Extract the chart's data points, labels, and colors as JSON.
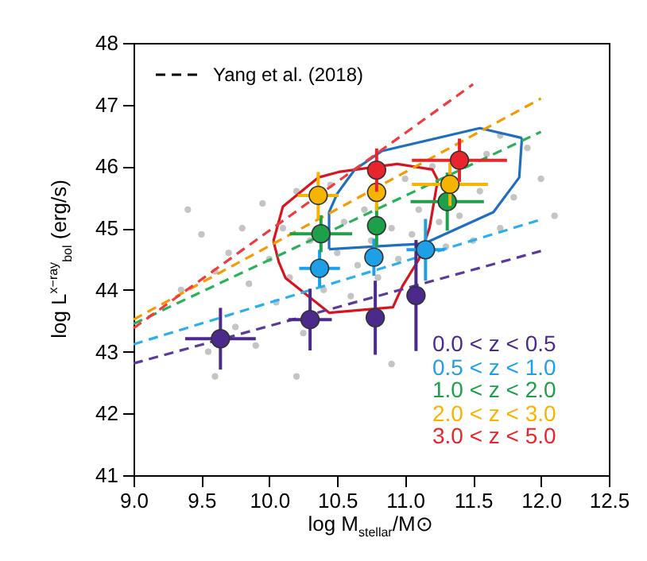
{
  "chart_data": {
    "type": "scatter",
    "xlabel": "log M$_{stellar}$/M⊙",
    "ylabel": "log L$^{x−ray}$$_{bol}$ (erg/s)",
    "xlim": [
      9.0,
      12.5
    ],
    "xticks": [
      {
        "value": 9,
        "label": "9.0"
      },
      9.5,
      {
        "value": 10,
        "label": "10.0"
      },
      10.5,
      {
        "value": 11,
        "label": "11.0"
      },
      11.5,
      {
        "value": 12,
        "label": "12.0"
      },
      12.5
    ],
    "ylim": [
      41,
      48
    ],
    "yticks": [
      41,
      42,
      43,
      44,
      45,
      46,
      47,
      48
    ],
    "grid": false,
    "legend": "bottom right",
    "annotations": [
      "Yang et al. (2018)"
    ],
    "series": [
      {
        "marker": "circle",
        "color": "#c4c4c4",
        "x": [
          9.35,
          9.4,
          9.5,
          9.55,
          9.6,
          9.7,
          9.75,
          9.8,
          9.85,
          9.9,
          9.95,
          10.0,
          10.05,
          10.1,
          10.15,
          10.2,
          10.25,
          10.3,
          10.4,
          10.45,
          10.5,
          10.55,
          10.6,
          10.65,
          10.7,
          10.75,
          10.8,
          10.9,
          10.95,
          11.0,
          11.05,
          11.1,
          11.2,
          11.25,
          11.3,
          11.4,
          11.5,
          11.55,
          11.6,
          11.7,
          11.8,
          11.9,
          12.0,
          12.1,
          10.2,
          10.9,
          11.7,
          9.6
        ],
        "values": [
          44.0,
          45.3,
          44.9,
          43.0,
          44.3,
          44.6,
          43.4,
          45.0,
          44.1,
          43.1,
          45.4,
          44.5,
          43.8,
          45.0,
          44.2,
          45.6,
          43.3,
          44.8,
          44.0,
          45.7,
          44.6,
          45.1,
          43.9,
          44.4,
          45.3,
          44.8,
          44.2,
          45.0,
          44.5,
          45.8,
          44.9,
          45.3,
          46.0,
          45.1,
          44.7,
          45.2,
          44.8,
          45.6,
          46.2,
          45.0,
          45.5,
          46.3,
          45.8,
          45.2,
          42.6,
          42.8,
          46.5,
          42.6
        ]
      },
      {
        "type": "line",
        "line_style": "solid",
        "color": "#d8151f",
        "x": [
          10.03,
          10.1,
          10.36,
          10.51,
          10.94,
          11.2,
          11.24
        ],
        "values": [
          44.79,
          45.35,
          45.82,
          45.91,
          46.04,
          45.95,
          45.78
        ]
      },
      {
        "type": "line",
        "line_style": "solid",
        "color": "#d8151f",
        "x": [
          10.03,
          10.07,
          10.12,
          10.44,
          10.91,
          10.98,
          11.1,
          11.18,
          11.24
        ],
        "values": [
          44.79,
          44.45,
          44.19,
          43.63,
          43.72,
          44.06,
          44.49,
          45.01,
          45.78
        ]
      },
      {
        "type": "line",
        "line_style": "solid",
        "color": "#1f6fc0",
        "x": [
          10.44,
          10.44,
          10.5,
          10.63,
          10.83,
          11.55,
          11.86
        ],
        "values": [
          44.66,
          45.26,
          45.56,
          45.95,
          46.25,
          46.62,
          46.46
        ]
      },
      {
        "type": "line",
        "line_style": "solid",
        "color": "#1f6fc0",
        "x": [
          10.44,
          11.14,
          11.65,
          11.84,
          11.86
        ],
        "values": [
          44.66,
          44.75,
          45.26,
          45.82,
          46.46
        ]
      },
      {
        "type": "line",
        "line_style": "dashed",
        "color": "#5a3a9c",
        "x": [
          9.0,
          12.0
        ],
        "values": [
          42.81,
          44.63
        ]
      },
      {
        "type": "line",
        "line_style": "dashed",
        "color": "#2ab0f0",
        "x": [
          9.0,
          12.0
        ],
        "values": [
          43.12,
          45.14
        ]
      },
      {
        "type": "line",
        "line_style": "dashed",
        "color": "#2ab058",
        "x": [
          9.0,
          12.0
        ],
        "values": [
          43.45,
          46.56
        ]
      },
      {
        "type": "line",
        "line_style": "dashed",
        "color": "#f59a00",
        "x": [
          9.0,
          12.0
        ],
        "values": [
          43.52,
          47.1
        ]
      },
      {
        "type": "line",
        "line_style": "dashed",
        "color": "#f03a40",
        "x": [
          9.0,
          11.5
        ],
        "values": [
          43.38,
          47.33
        ]
      },
      {
        "marker": "circle",
        "name": "0.0 < z < 0.5",
        "color": "#4b2a8c",
        "x": [
          9.64,
          10.3,
          10.78,
          11.08
        ],
        "values": [
          43.21,
          43.52,
          43.55,
          43.91
        ],
        "errors": [
          0.5,
          0.5,
          0.6,
          0.9
        ],
        "xerrors": [
          0.26,
          0.16,
          null,
          null
        ]
      },
      {
        "marker": "circle",
        "name": "0.5 < z < 1.0",
        "color": "#1ea0e6",
        "x": [
          10.37,
          10.77,
          11.15
        ],
        "values": [
          44.35,
          44.53,
          44.65
        ],
        "errors": [
          0.3,
          0.3,
          0.5
        ],
        "xerrors": [
          0.15,
          null,
          0.14
        ]
      },
      {
        "marker": "circle",
        "name": "1.0 < z < 2.0",
        "color": "#1ea04b",
        "x": [
          10.38,
          10.79,
          11.31
        ],
        "values": [
          44.91,
          45.04,
          45.43
        ],
        "errors": [
          0.3,
          0.35,
          0.47
        ],
        "xerrors": [
          0.23,
          null,
          0.27
        ]
      },
      {
        "marker": "circle",
        "name": "2.0 < z < 3.0",
        "color": "#f5b400",
        "x": [
          10.36,
          10.79,
          11.33
        ],
        "values": [
          45.53,
          45.58,
          45.71
        ],
        "errors": [
          0.38,
          0.3,
          0.35
        ],
        "xerrors": [
          0.15,
          null,
          0.28
        ]
      },
      {
        "marker": "circle",
        "name": "3.0 < z < 5.0",
        "color": "#e8242c",
        "x": [
          10.79,
          11.4
        ],
        "values": [
          45.94,
          46.1
        ],
        "errors": [
          0.35,
          0.35
        ],
        "xerrors": [
          null,
          0.35
        ]
      }
    ]
  }
}
